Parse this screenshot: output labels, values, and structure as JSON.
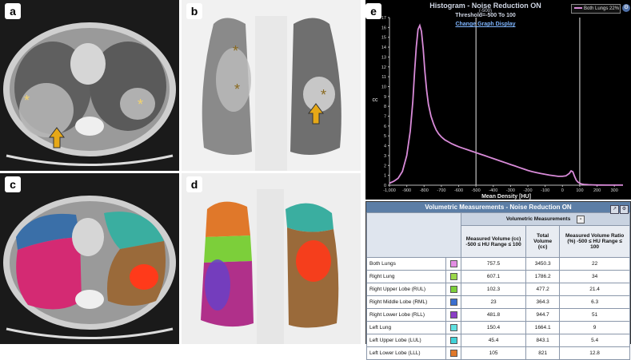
{
  "panels": {
    "a": {
      "label": "a"
    },
    "b": {
      "label": "b"
    },
    "c": {
      "label": "c"
    },
    "d": {
      "label": "d"
    },
    "e": {
      "label": "e"
    }
  },
  "histogram": {
    "title": "Histogram - Noise Reduction ON",
    "threshold_top": "(-500)",
    "threshold": "Threshold=-500 To 100",
    "change_link": "Change Graph Display",
    "legend": "Both Lungs 22%",
    "settings_icon": "gear-icon",
    "chart_data": {
      "type": "line",
      "xlabel": "Mean Density [HU]",
      "ylabel": "cc",
      "xlim": [
        -1000,
        350
      ],
      "ylim": [
        0,
        17
      ],
      "xticks": [
        "-1,000",
        "-900",
        "-800",
        "-700",
        "-600",
        "-500",
        "-400",
        "-300",
        "-200",
        "-100",
        "0",
        "100",
        "200",
        "300"
      ],
      "yticks": [
        "0",
        "1",
        "2",
        "3",
        "4",
        "5",
        "6",
        "7",
        "8",
        "9",
        "10",
        "11",
        "12",
        "13",
        "14",
        "15",
        "16",
        "17"
      ],
      "threshold_lines": [
        -500,
        100
      ],
      "series": [
        {
          "name": "Both Lungs 22%",
          "color": "#d98bd9",
          "x": [
            -1000,
            -975,
            -950,
            -925,
            -900,
            -880,
            -865,
            -855,
            -845,
            -835,
            -825,
            -815,
            -805,
            -795,
            -785,
            -775,
            -760,
            -745,
            -730,
            -715,
            -700,
            -680,
            -660,
            -640,
            -620,
            -600,
            -575,
            -550,
            -525,
            -500,
            -475,
            -450,
            -425,
            -400,
            -375,
            -350,
            -325,
            -300,
            -275,
            -250,
            -225,
            -200,
            -175,
            -150,
            -125,
            -100,
            -75,
            -50,
            -25,
            0,
            20,
            40,
            50,
            60,
            70,
            80,
            90,
            100,
            110,
            125,
            150,
            175,
            200,
            225,
            250,
            275,
            300,
            325,
            350
          ],
          "y": [
            0.2,
            0.4,
            0.7,
            1.4,
            3,
            5.5,
            8.5,
            11.5,
            14,
            15.8,
            16.2,
            15.6,
            13.8,
            11.5,
            9.6,
            8.2,
            7.0,
            6.2,
            5.6,
            5.2,
            4.9,
            4.6,
            4.4,
            4.2,
            4.05,
            3.9,
            3.75,
            3.6,
            3.45,
            3.3,
            3.15,
            3.0,
            2.85,
            2.7,
            2.55,
            2.4,
            2.25,
            2.1,
            1.95,
            1.8,
            1.65,
            1.5,
            1.38,
            1.28,
            1.18,
            1.1,
            1.02,
            0.96,
            0.9,
            0.9,
            0.95,
            1.2,
            1.45,
            1.35,
            0.9,
            0.5,
            0.3,
            0.2,
            0.12,
            0.08,
            0.05,
            0.03,
            0.02,
            0.02,
            0.01,
            0.01,
            0.01,
            0.01,
            0.01
          ]
        }
      ]
    }
  },
  "volumetric": {
    "title": "Volumetric Measurements - Noise Reduction ON",
    "header_icons": [
      "export-icon",
      "settings-icon"
    ],
    "group_header": "Volumetric Measurements",
    "group_toggle": "-",
    "columns": [
      "Measured Volume (cc) -500 ≤ HU Range ≤ 100",
      "Total Volume (cc)",
      "Measured Volume Ratio (%) -500 ≤ HU Range ≤ 100"
    ],
    "rows": [
      {
        "name": "Both Lungs",
        "color": "#e38ee3",
        "measured": "757.5",
        "total": "3450.3",
        "ratio": "22"
      },
      {
        "name": "Right Lung",
        "color": "#9bd84a",
        "measured": "607.1",
        "total": "1786.2",
        "ratio": "34"
      },
      {
        "name": "Right Upper Lobe (RUL)",
        "color": "#7ccf3a",
        "measured": "102.3",
        "total": "477.2",
        "ratio": "21.4"
      },
      {
        "name": "Right Middle Lobe (RML)",
        "color": "#3a6fd0",
        "measured": "23",
        "total": "364.3",
        "ratio": "6.3"
      },
      {
        "name": "Right Lower Lobe (RLL)",
        "color": "#8b3fc6",
        "measured": "481.8",
        "total": "944.7",
        "ratio": "51"
      },
      {
        "name": "Left Lung",
        "color": "#5fe0e0",
        "measured": "150.4",
        "total": "1664.1",
        "ratio": "9"
      },
      {
        "name": "Left Upper Lobe (LUL)",
        "color": "#40d2d8",
        "measured": "45.4",
        "total": "843.1",
        "ratio": "5.4"
      },
      {
        "name": "Left Lower Lobe (LLL)",
        "color": "#e0782a",
        "measured": "105",
        "total": "821",
        "ratio": "12.8"
      }
    ]
  }
}
